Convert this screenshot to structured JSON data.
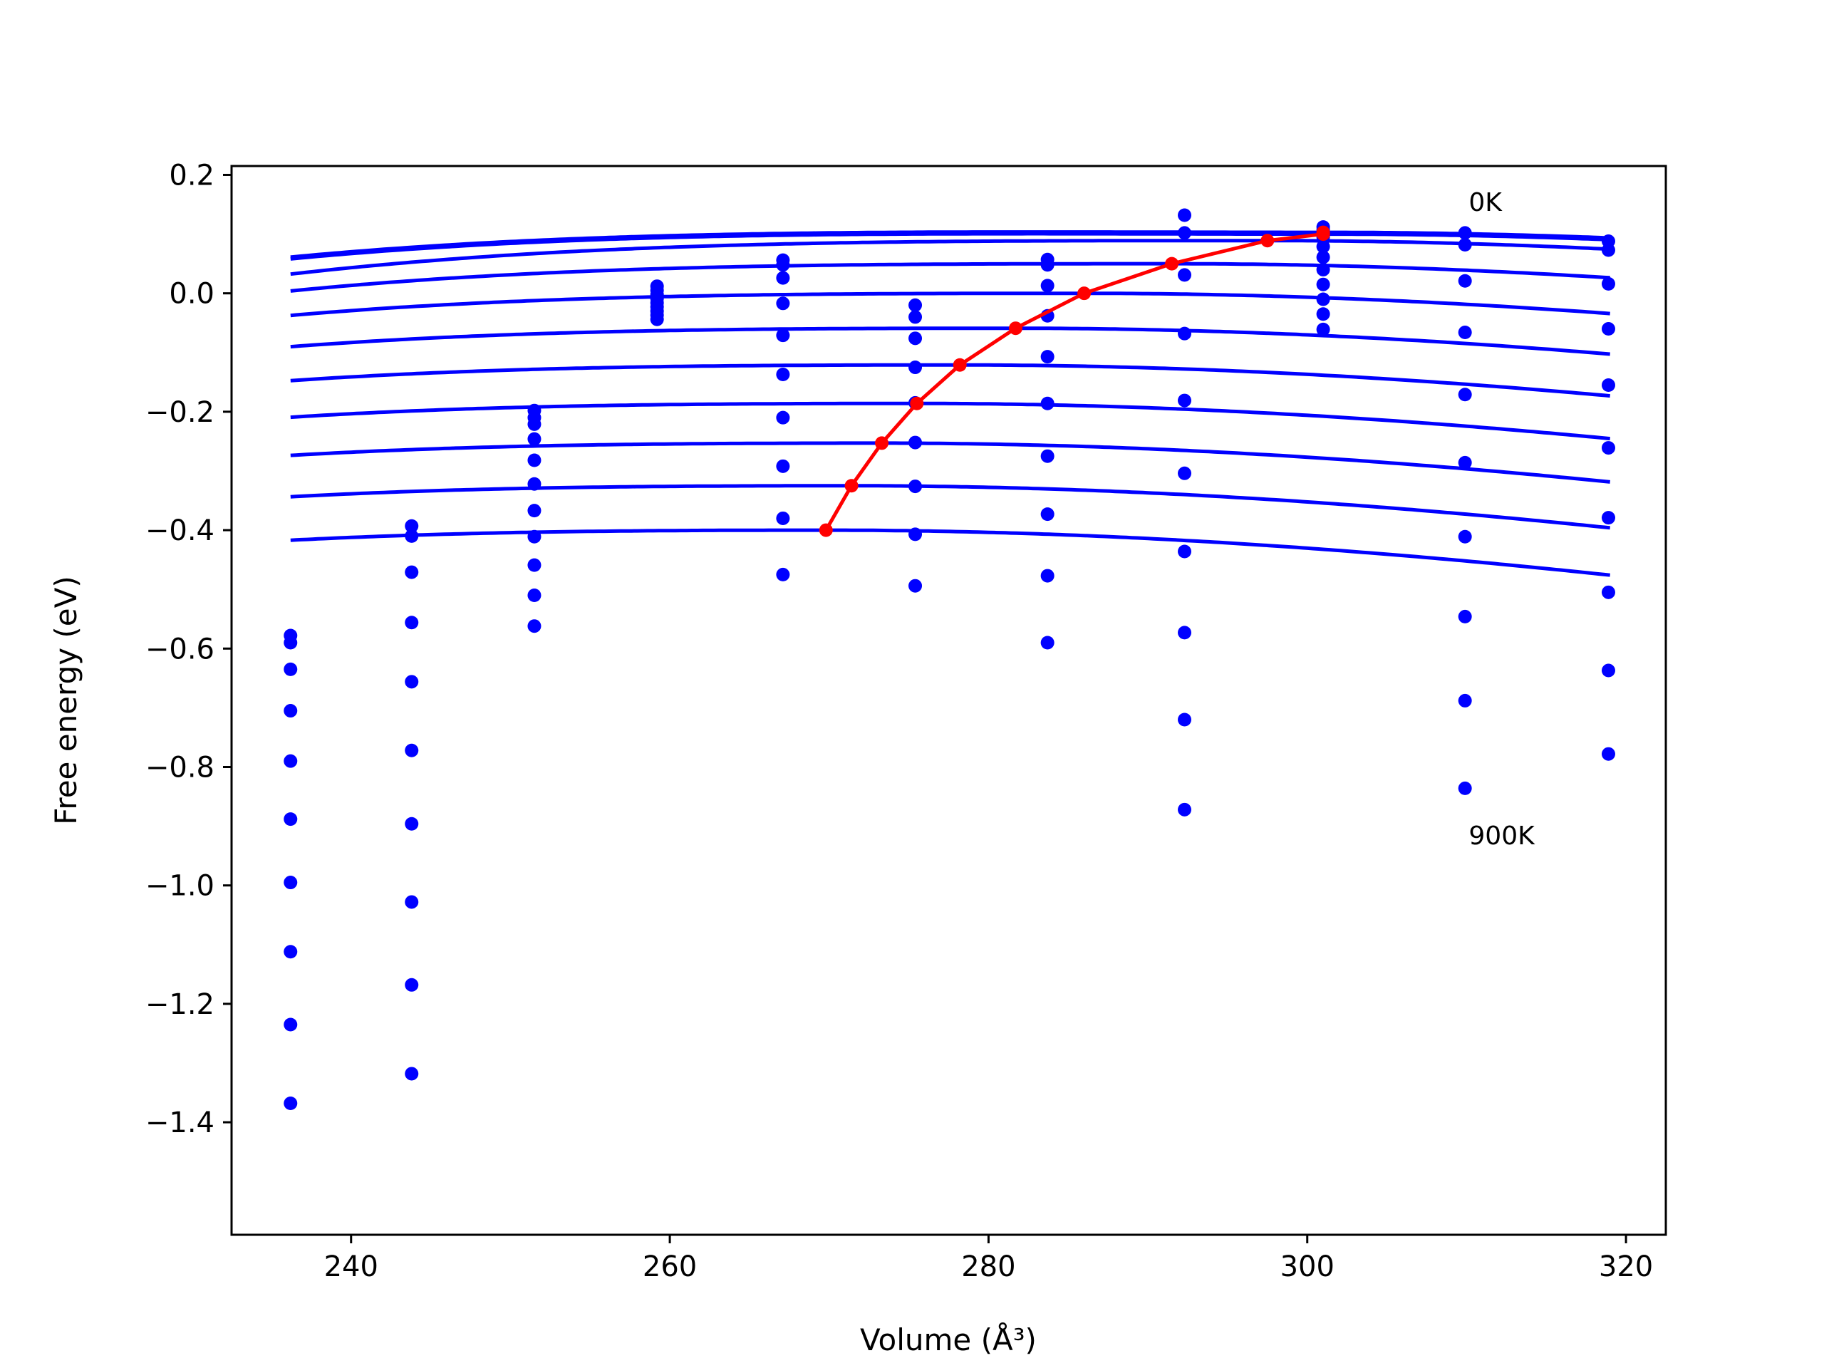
{
  "chart_data": {
    "type": "line",
    "title": "",
    "xlabel": "Volume (Å³)",
    "ylabel": "Free energy (eV)",
    "xlim": [
      232.5,
      322.5
    ],
    "ylim": [
      -1.59,
      0.215
    ],
    "xticks": [
      240,
      260,
      280,
      300,
      320
    ],
    "yticks": [
      0.2,
      0.0,
      -0.2,
      -0.4,
      -0.6,
      -0.8,
      -1.0,
      -1.2,
      -1.4
    ],
    "xtick_labels": [
      "240",
      "260",
      "280",
      "300",
      "320"
    ],
    "ytick_labels": [
      "0.2",
      "0.0",
      "−0.2",
      "−0.4",
      "−0.6",
      "−0.8",
      "−1.0",
      "−1.2",
      "−1.4"
    ],
    "grid": false,
    "annotations": [
      {
        "text": "0K",
        "x": 310,
        "y": 0.155
      },
      {
        "text": "900K",
        "x": 310,
        "y": -0.915
      }
    ],
    "colors": {
      "curves": "#0000ff",
      "points": "#0000ff",
      "minimum_path": "#ff0000",
      "frame": "#000000"
    },
    "curve_x_range": [
      236.2,
      319
    ],
    "curves": [
      {
        "vmin": 301.0,
        "fmin": 0.103,
        "b": 0.017,
        "c": 6.2e-05
      },
      {
        "vmin": 301.0,
        "fmin": 0.1,
        "b": 0.017,
        "c": 6.2e-05
      },
      {
        "vmin": 297.5,
        "fmin": 0.089,
        "b": 0.0182,
        "c": 6.2e-05
      },
      {
        "vmin": 291.5,
        "fmin": 0.05,
        "b": 0.0182,
        "c": 6.2e-05
      },
      {
        "vmin": 286.0,
        "fmin": 0.0,
        "b": 0.0182,
        "c": 6.2e-05
      },
      {
        "vmin": 281.7,
        "fmin": -0.059,
        "b": 0.0182,
        "c": 6.2e-05
      },
      {
        "vmin": 278.2,
        "fmin": -0.121,
        "b": 0.0182,
        "c": 6.2e-05
      },
      {
        "vmin": 275.5,
        "fmin": -0.186,
        "b": 0.0182,
        "c": 6.2e-05
      },
      {
        "vmin": 273.3,
        "fmin": -0.253,
        "b": 0.0182,
        "c": 6.2e-05
      },
      {
        "vmin": 271.4,
        "fmin": -0.325,
        "b": 0.0182,
        "c": 6.2e-05
      },
      {
        "vmin": 269.8,
        "fmin": -0.4,
        "b": 0.0182,
        "c": 6.2e-05
      }
    ],
    "scatter_columns": [
      {
        "x": 236.2,
        "y": [
          -0.578,
          -0.59,
          -0.635,
          -0.705,
          -0.79,
          -0.888,
          -0.995,
          -1.112,
          -1.235,
          -1.368
        ]
      },
      {
        "x": 243.8,
        "y": [
          -0.393,
          -0.41,
          -0.471,
          -0.556,
          -0.656,
          -0.772,
          -0.896,
          -1.028,
          -1.168,
          -1.318
        ]
      },
      {
        "x": 251.5,
        "y": [
          -0.198,
          -0.21,
          -0.221,
          -0.246,
          -0.282,
          -0.322,
          -0.367,
          -0.411,
          -0.459,
          -0.51,
          -0.562
        ]
      },
      {
        "x": 259.2,
        "y": [
          0.012,
          0.005,
          -0.002,
          -0.009,
          -0.016,
          -0.023,
          -0.03,
          -0.037,
          -0.044
        ]
      },
      {
        "x": 267.1,
        "y": [
          0.056,
          0.048,
          0.026,
          -0.017,
          -0.071,
          -0.137,
          -0.21,
          -0.292,
          -0.38,
          -0.475
        ]
      },
      {
        "x": 275.4,
        "y": [
          -0.02,
          -0.04,
          -0.076,
          -0.125,
          -0.185,
          -0.252,
          -0.326,
          -0.407,
          -0.494
        ]
      },
      {
        "x": 283.7,
        "y": [
          0.057,
          0.048,
          0.013,
          -0.038,
          -0.107,
          -0.186,
          -0.275,
          -0.373,
          -0.477,
          -0.59
        ]
      },
      {
        "x": 292.3,
        "y": [
          0.132,
          0.102,
          0.031,
          -0.068,
          -0.181,
          -0.304,
          -0.436,
          -0.573,
          -0.72,
          -0.872
        ]
      },
      {
        "x": 301.0,
        "y": [
          0.112,
          0.107,
          0.095,
          0.079,
          0.061,
          0.04,
          0.015,
          -0.01,
          -0.035,
          -0.061
        ]
      },
      {
        "x": 309.9,
        "y": [
          0.102,
          0.082,
          0.021,
          -0.066,
          -0.171,
          -0.286,
          -0.411,
          -0.546,
          -0.688,
          -0.836
        ]
      },
      {
        "x": 318.9,
        "y": [
          0.088,
          0.073,
          0.016,
          -0.06,
          -0.155,
          -0.261,
          -0.379,
          -0.505,
          -0.637,
          -0.778
        ]
      }
    ],
    "minimum_path": {
      "x": [
        301.0,
        301.0,
        297.5,
        291.5,
        286.0,
        281.7,
        278.2,
        275.5,
        273.3,
        271.4,
        269.8
      ],
      "y": [
        0.103,
        0.1,
        0.089,
        0.05,
        0.0,
        -0.059,
        -0.121,
        -0.186,
        -0.253,
        -0.325,
        -0.4
      ]
    }
  }
}
